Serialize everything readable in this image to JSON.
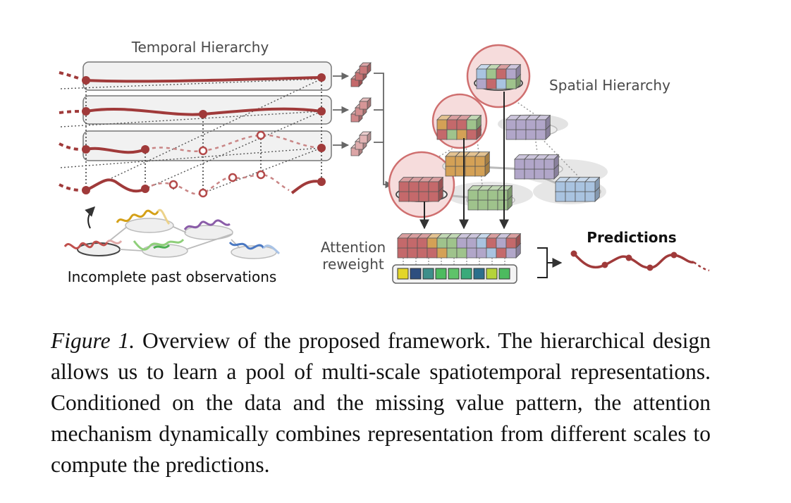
{
  "labels": {
    "temporal_hierarchy": "Temporal Hierarchy",
    "spatial_hierarchy": "Spatial Hierarchy",
    "incomplete_obs": "Incomplete past observations",
    "attention_line1": "Attention",
    "attention_line2": "reweight",
    "predictions": "Predictions"
  },
  "caption": {
    "label": "Figure 1.",
    "text": " Overview of the proposed framework. The hierarchical design allows us to learn a pool of multi-scale spatiotemporal representations. Conditioned on the data and the missing value pattern, the attention mechanism dynamically combines representation from different scales to compute the predictions."
  },
  "colors": {
    "series_red": "#a03a3a",
    "dot_red": "#b44a4a",
    "cube_red": "#c4696b",
    "cube_orange": "#d4a156",
    "cube_green": "#9fc38c",
    "cube_purple": "#b1a6c9",
    "cube_blue": "#a9c3e0",
    "text_gray": "#4a4a4a",
    "weight_colors": [
      "#e3d62a",
      "#2e4e7f",
      "#3f8f8a",
      "#4dbb5f",
      "#5fc36a",
      "#3aaa7a",
      "#2c6f8c",
      "#b5d33a",
      "#4dbb5f"
    ]
  }
}
